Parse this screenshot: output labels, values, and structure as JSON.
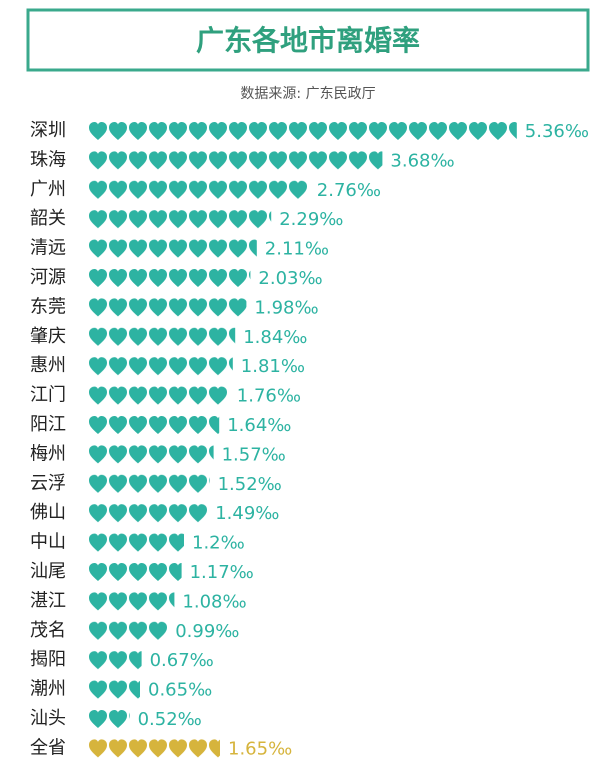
{
  "chart_data": {
    "type": "bar",
    "orientation": "horizontal",
    "title": "广东各地市离婚率",
    "subtitle": "数据来源: 广东民政厅",
    "categories": [
      "深圳",
      "珠海",
      "广州",
      "韶关",
      "清远",
      "河源",
      "东莞",
      "肇庆",
      "惠州",
      "江门",
      "阳江",
      "梅州",
      "云浮",
      "佛山",
      "中山",
      "汕尾",
      "湛江",
      "茂名",
      "揭阳",
      "潮州",
      "汕头",
      "全省"
    ],
    "values": [
      5.36,
      3.68,
      2.76,
      2.29,
      2.11,
      2.03,
      1.98,
      1.84,
      1.81,
      1.76,
      1.64,
      1.57,
      1.52,
      1.49,
      1.2,
      1.17,
      1.08,
      0.99,
      0.67,
      0.65,
      0.52,
      1.65
    ],
    "value_labels": [
      "5.36‰",
      "3.68‰",
      "2.76‰",
      "2.29‰",
      "2.11‰",
      "2.03‰",
      "1.98‰",
      "1.84‰",
      "1.81‰",
      "1.76‰",
      "1.64‰",
      "1.57‰",
      "1.52‰",
      "1.49‰",
      "1.2‰",
      "1.17‰",
      "1.08‰",
      "0.99‰",
      "0.67‰",
      "0.65‰",
      "0.52‰",
      "1.65‰"
    ],
    "colors": [
      "#2db3a2",
      "#2db3a2",
      "#2db3a2",
      "#2db3a2",
      "#2db3a2",
      "#2db3a2",
      "#2db3a2",
      "#2db3a2",
      "#2db3a2",
      "#2db3a2",
      "#2db3a2",
      "#2db3a2",
      "#2db3a2",
      "#2db3a2",
      "#2db3a2",
      "#2db3a2",
      "#2db3a2",
      "#2db3a2",
      "#2db3a2",
      "#2db3a2",
      "#2db3a2",
      "#d6b43c"
    ]
  }
}
